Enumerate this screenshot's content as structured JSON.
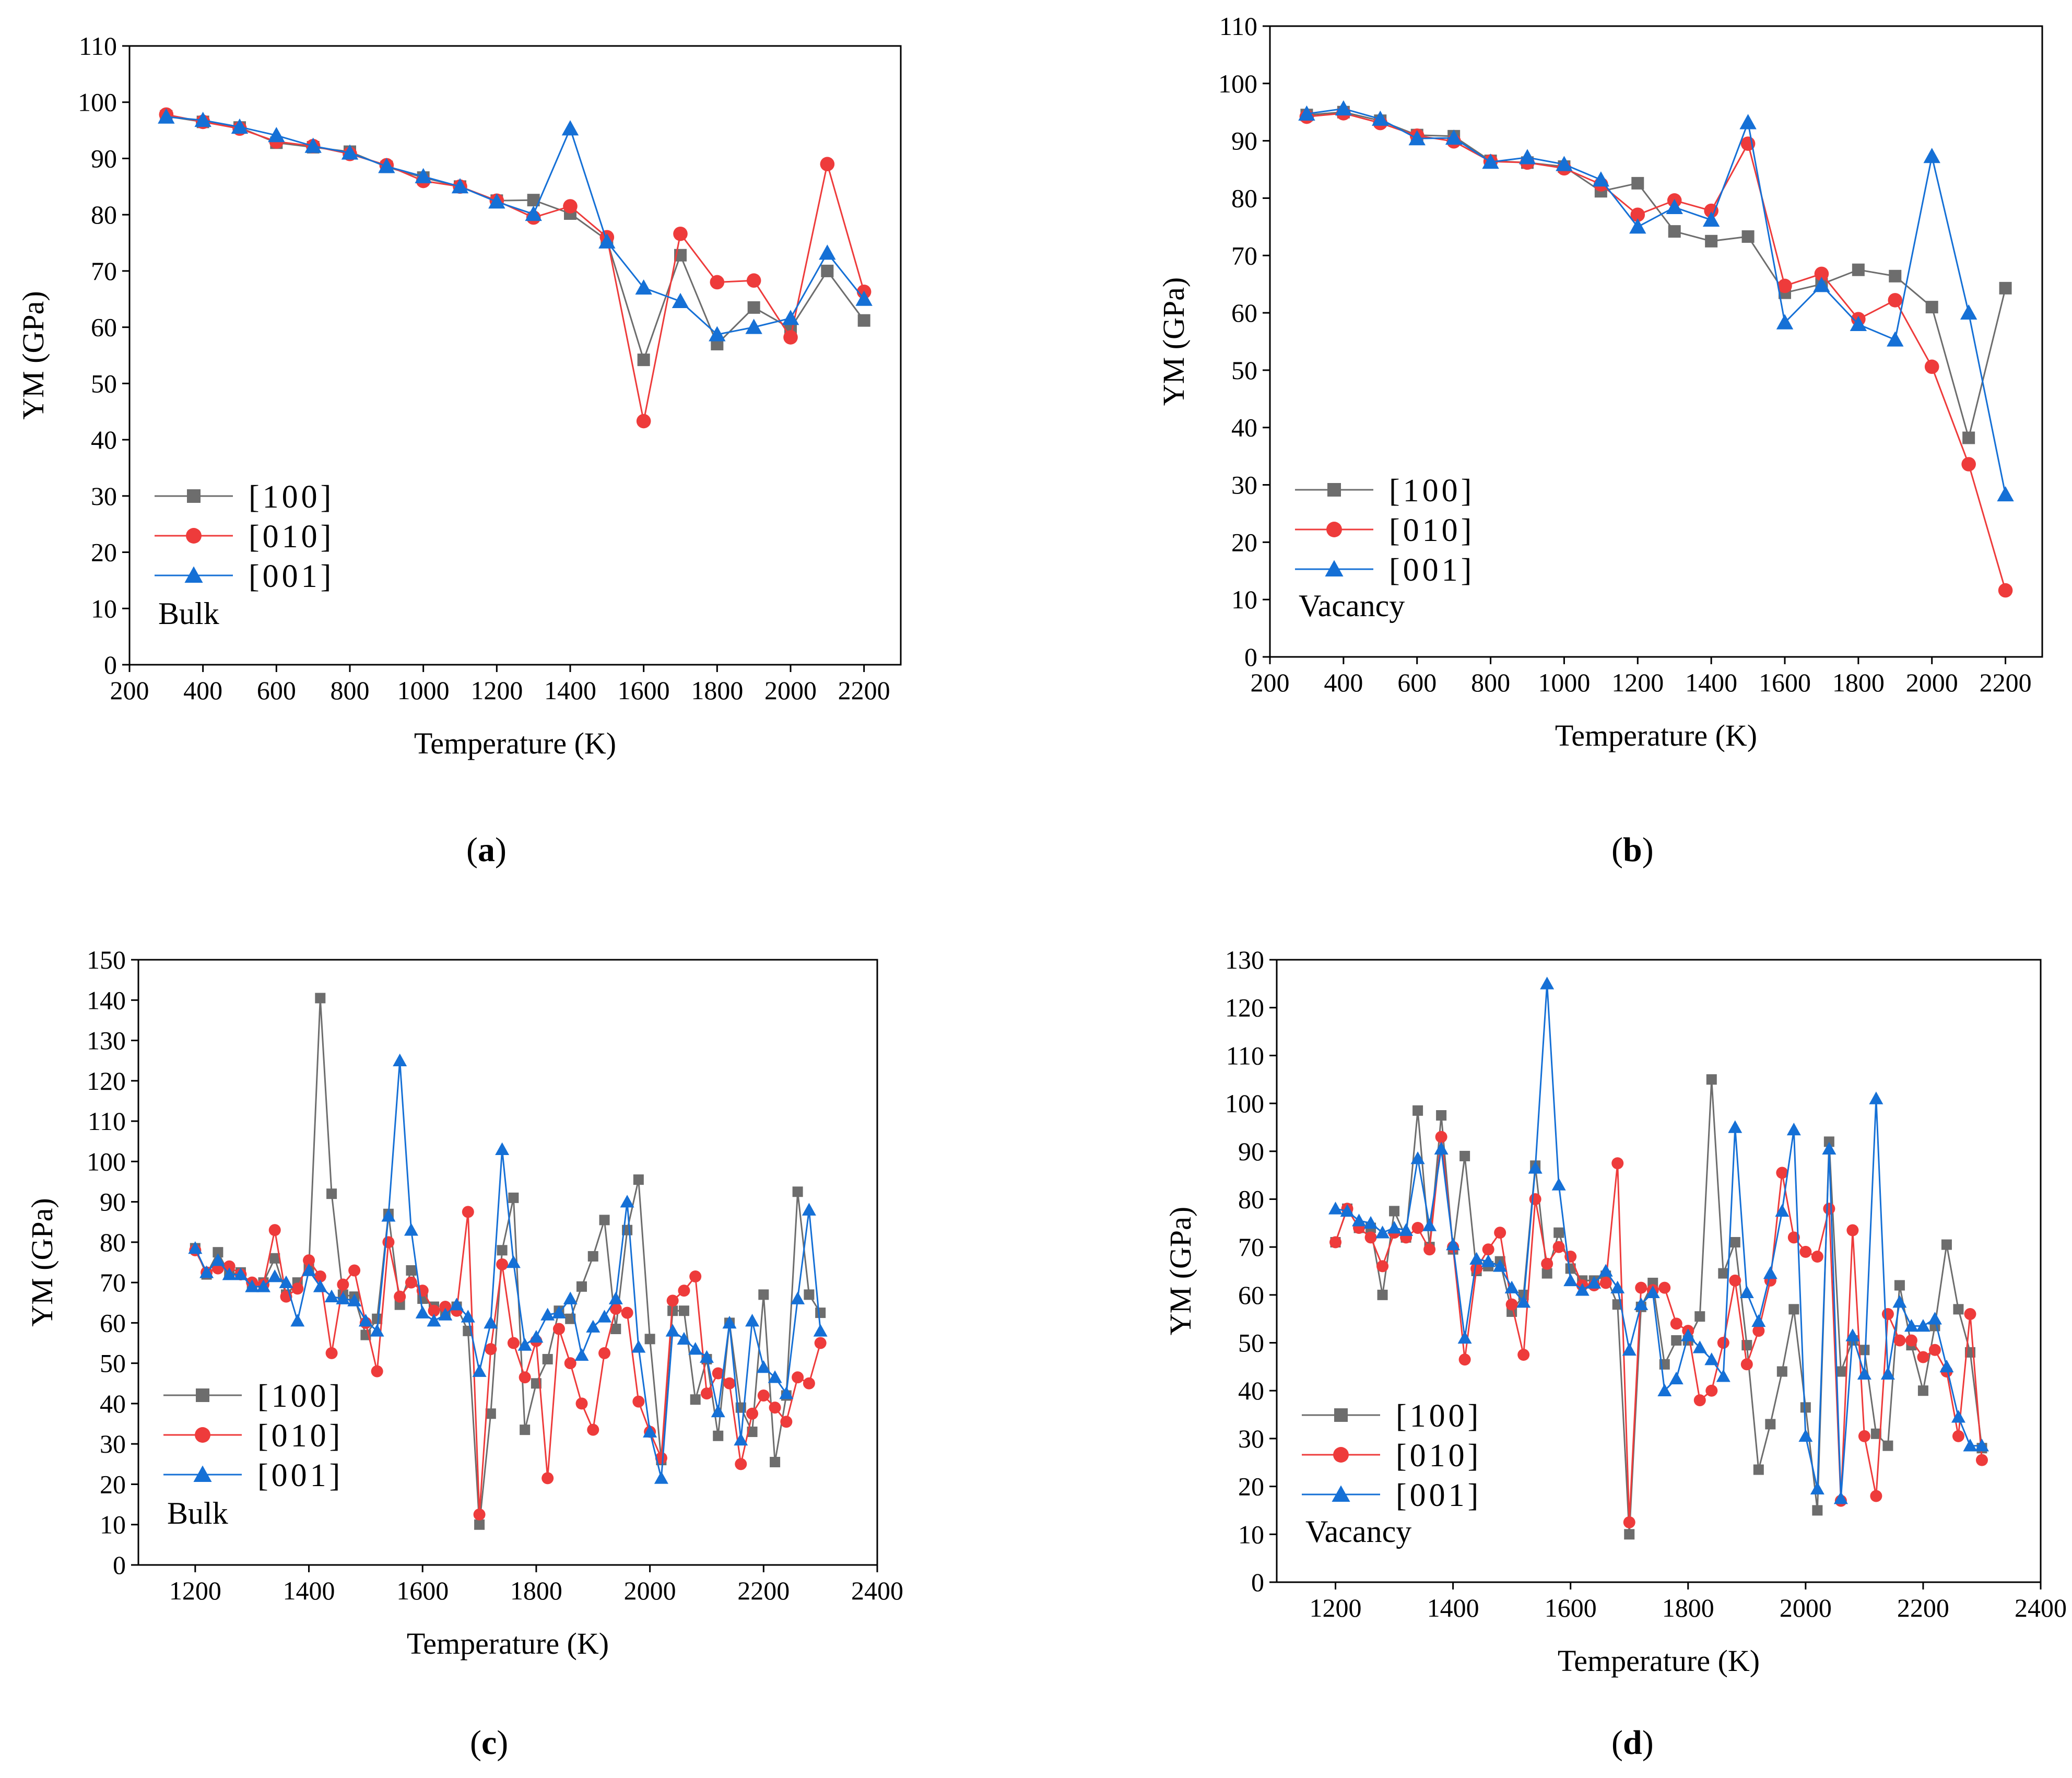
{
  "figure": {
    "panels": [
      "a",
      "b",
      "c",
      "d"
    ]
  },
  "legend_labels": [
    "[100]",
    "[010]",
    "[001]"
  ],
  "chart_data": [
    {
      "id": "a",
      "type": "line",
      "caption": "a",
      "annotation": "Bulk",
      "xlabel": "Temperature (K)",
      "ylabel": "YM (GPa)",
      "xlim": [
        200,
        2300
      ],
      "ylim": [
        0,
        110
      ],
      "xticks": [
        200,
        400,
        600,
        800,
        1000,
        1200,
        1400,
        1600,
        1800,
        2000,
        2200
      ],
      "yticks": [
        0,
        10,
        20,
        30,
        40,
        50,
        60,
        70,
        80,
        90,
        100,
        110
      ],
      "legend_position": "lower-left",
      "grid": false,
      "x": [
        300,
        400,
        500,
        600,
        700,
        800,
        900,
        1000,
        1100,
        1200,
        1300,
        1400,
        1500,
        1600,
        1700,
        1800,
        1900,
        2000,
        2100,
        2200
      ],
      "series": [
        {
          "name": "[100]",
          "color": "#6d6d6d",
          "marker": "square",
          "values": [
            97.5,
            96.5,
            95.5,
            92.8,
            92,
            91.2,
            88.5,
            86.6,
            85,
            82.5,
            82.6,
            80.2,
            75.5,
            54.2,
            72.8,
            57,
            63.5,
            59.8,
            70,
            61.2
          ]
        },
        {
          "name": "[010]",
          "color": "#ee3b3b",
          "marker": "circle",
          "values": [
            97.8,
            96.5,
            95.3,
            93,
            92.2,
            90.8,
            88.8,
            86,
            85,
            82.5,
            79.5,
            81.5,
            76,
            43.3,
            76.6,
            68,
            68.3,
            58.2,
            89,
            66.3
          ]
        },
        {
          "name": "[001]",
          "color": "#1570d6",
          "marker": "triangle",
          "values": [
            97.4,
            96.8,
            95.6,
            94.1,
            92.2,
            91,
            88.6,
            86.8,
            85,
            82.3,
            80.1,
            95.3,
            75.2,
            67,
            64.6,
            58.7,
            60,
            61.6,
            73.2,
            65
          ]
        }
      ]
    },
    {
      "id": "b",
      "type": "line",
      "caption": "b",
      "annotation": "Vacancy",
      "xlabel": "Temperature (K)",
      "ylabel": "YM (GPa)",
      "xlim": [
        200,
        2300
      ],
      "ylim": [
        0,
        110
      ],
      "xticks": [
        200,
        400,
        600,
        800,
        1000,
        1200,
        1400,
        1600,
        1800,
        2000,
        2200
      ],
      "yticks": [
        0,
        10,
        20,
        30,
        40,
        50,
        60,
        70,
        80,
        90,
        100,
        110
      ],
      "legend_position": "lower-left",
      "grid": false,
      "x": [
        300,
        400,
        500,
        600,
        700,
        800,
        900,
        1000,
        1100,
        1200,
        1300,
        1400,
        1500,
        1600,
        1700,
        1800,
        1900,
        2000,
        2100,
        2200
      ],
      "series": [
        {
          "name": "[100]",
          "color": "#6d6d6d",
          "marker": "square",
          "values": [
            94.5,
            95,
            93.5,
            91,
            90.8,
            86.5,
            86.2,
            85.5,
            81.2,
            82.6,
            74.2,
            72.5,
            73.3,
            63.5,
            65,
            67.5,
            66.4,
            61,
            38.2,
            64.3
          ]
        },
        {
          "name": "[010]",
          "color": "#ee3b3b",
          "marker": "circle",
          "values": [
            94.2,
            94.8,
            93.1,
            90.9,
            89.9,
            86.4,
            86.2,
            85.2,
            82.4,
            77.1,
            79.6,
            77.8,
            89.5,
            64.7,
            66.8,
            58.9,
            62.2,
            50.6,
            33.6,
            11.6
          ]
        },
        {
          "name": "[001]",
          "color": "#1570d6",
          "marker": "triangle",
          "values": [
            94.7,
            95.6,
            93.8,
            90.4,
            90.5,
            86.3,
            87.1,
            85.9,
            83.2,
            75,
            78.4,
            76.2,
            93.2,
            58.3,
            64.8,
            58,
            55.3,
            87.3,
            60,
            28.3
          ]
        }
      ]
    },
    {
      "id": "c",
      "type": "line",
      "caption": "c",
      "annotation": "Bulk",
      "xlabel": "Temperature (K)",
      "ylabel": "YM (GPa)",
      "xlim": [
        1100,
        2400
      ],
      "ylim": [
        0,
        150
      ],
      "xticks": [
        1200,
        1400,
        1600,
        1800,
        2000,
        2200,
        2400
      ],
      "yticks": [
        0,
        10,
        20,
        30,
        40,
        50,
        60,
        70,
        80,
        90,
        100,
        110,
        120,
        130,
        140,
        150
      ],
      "legend_position": "lower-left",
      "grid": false,
      "x": [
        1200,
        1220,
        1240,
        1260,
        1280,
        1300,
        1320,
        1340,
        1360,
        1380,
        1400,
        1420,
        1440,
        1460,
        1480,
        1500,
        1520,
        1540,
        1560,
        1580,
        1600,
        1620,
        1640,
        1660,
        1680,
        1700,
        1720,
        1740,
        1760,
        1780,
        1800,
        1820,
        1840,
        1860,
        1880,
        1900,
        1920,
        1940,
        1960,
        1980,
        2000,
        2020,
        2040,
        2060,
        2080,
        2100,
        2120,
        2140,
        2160,
        2180,
        2200,
        2220,
        2240,
        2260,
        2280,
        2300
      ],
      "series": [
        {
          "name": "[100]",
          "color": "#6d6d6d",
          "marker": "square",
          "values": [
            78.5,
            72,
            77.5,
            72,
            72.5,
            69,
            70,
            76,
            67,
            70,
            73.5,
            140.5,
            92,
            67,
            66.5,
            57,
            61,
            87,
            64.5,
            73,
            66,
            64,
            62.5,
            64,
            58,
            10,
            37.5,
            78,
            91,
            33.5,
            45,
            51,
            63,
            61,
            69,
            76.5,
            85.5,
            58.5,
            83,
            95.5,
            56,
            26,
            63,
            63,
            41,
            51,
            32,
            60,
            39,
            33,
            67,
            25.5,
            42,
            92.5,
            67,
            62.5
          ]
        },
        {
          "name": "[010]",
          "color": "#ee3b3b",
          "marker": "circle",
          "values": [
            78,
            72.5,
            73.5,
            74,
            72,
            70,
            69.5,
            83,
            66.5,
            68.5,
            75.5,
            71.5,
            52.5,
            69.5,
            73,
            60,
            48,
            80,
            66.5,
            70,
            68,
            63,
            64,
            63,
            87.5,
            12.5,
            53.5,
            74.5,
            55,
            46.5,
            55.5,
            21.5,
            58.5,
            50,
            40,
            33.5,
            52.5,
            63.5,
            62.5,
            40.5,
            33,
            26.5,
            65.5,
            68,
            71.5,
            42.5,
            47.5,
            45,
            25,
            37.5,
            42,
            39,
            35.5,
            46.5,
            45,
            55
          ]
        },
        {
          "name": "[001]",
          "color": "#1570d6",
          "marker": "triangle",
          "values": [
            78.5,
            72.5,
            75.5,
            72,
            72,
            69,
            69,
            71.5,
            70,
            60.5,
            73,
            69,
            66.5,
            66,
            65.5,
            60.5,
            58,
            86.5,
            125,
            83,
            62.5,
            60.5,
            62,
            64.5,
            61.5,
            48,
            60,
            103,
            75,
            54.5,
            56.5,
            62,
            62.5,
            66,
            52,
            59,
            61.5,
            66,
            90,
            54,
            33,
            21.5,
            58,
            56,
            53.5,
            51.5,
            38,
            60,
            31,
            60.5,
            49,
            46.5,
            42.5,
            66,
            88,
            58
          ]
        }
      ]
    },
    {
      "id": "d",
      "type": "line",
      "caption": "d",
      "annotation": "Vacancy",
      "xlabel": "Temperature (K)",
      "ylabel": "YM (GPa)",
      "xlim": [
        1100,
        2400
      ],
      "ylim": [
        0,
        130
      ],
      "xticks": [
        1200,
        1400,
        1600,
        1800,
        2000,
        2200,
        2400
      ],
      "yticks": [
        0,
        10,
        20,
        30,
        40,
        50,
        60,
        70,
        80,
        90,
        100,
        110,
        120,
        130
      ],
      "legend_position": "lower-left",
      "grid": false,
      "x": [
        1200,
        1220,
        1240,
        1260,
        1280,
        1300,
        1320,
        1340,
        1360,
        1380,
        1400,
        1420,
        1440,
        1460,
        1480,
        1500,
        1520,
        1540,
        1560,
        1580,
        1600,
        1620,
        1640,
        1660,
        1680,
        1700,
        1720,
        1740,
        1760,
        1780,
        1800,
        1820,
        1840,
        1860,
        1880,
        1900,
        1920,
        1940,
        1960,
        1980,
        2000,
        2020,
        2040,
        2060,
        2080,
        2100,
        2120,
        2140,
        2160,
        2180,
        2200,
        2220,
        2240,
        2260,
        2280,
        2300
      ],
      "series": [
        {
          "name": "[100]",
          "color": "#6d6d6d",
          "marker": "square",
          "values": [
            71,
            78,
            74,
            74,
            60,
            77.5,
            72,
            98.5,
            70,
            97.5,
            69.5,
            89,
            65,
            66,
            67,
            56.5,
            60,
            87,
            64.5,
            73,
            65.5,
            63,
            63,
            64,
            58,
            10,
            57.5,
            62.5,
            45.5,
            50.5,
            50.5,
            55.5,
            105,
            64.5,
            71,
            49.5,
            23.5,
            33,
            44,
            57,
            36.5,
            15,
            92,
            44,
            50.5,
            48.5,
            31,
            28.5,
            62,
            49.5,
            40,
            53.5,
            70.5,
            57,
            48,
            28
          ]
        },
        {
          "name": "[010]",
          "color": "#ee3b3b",
          "marker": "circle",
          "values": [
            71,
            78,
            74,
            72,
            66,
            73,
            72,
            74,
            69.5,
            93,
            70,
            46.5,
            65.5,
            69.5,
            73,
            58,
            47.5,
            80,
            66.5,
            70,
            68,
            62,
            62,
            62.5,
            87.5,
            12.5,
            61.5,
            61,
            61.5,
            54,
            52.5,
            38,
            40,
            50,
            63,
            45.5,
            52.5,
            63,
            85.5,
            72,
            69,
            68,
            78,
            17,
            73.5,
            30.5,
            18,
            56,
            50.5,
            50.5,
            47,
            48.5,
            44,
            30.5,
            56,
            25.5
          ]
        },
        {
          "name": "[001]",
          "color": "#1570d6",
          "marker": "triangle",
          "values": [
            78,
            77.5,
            75.5,
            75,
            73,
            74,
            73.5,
            88.5,
            74.5,
            90.5,
            70.5,
            51,
            67.5,
            67,
            66,
            61.5,
            58.5,
            86.5,
            125,
            83,
            63,
            61,
            62.5,
            65,
            61.5,
            48.5,
            58,
            60.5,
            40,
            42.5,
            51.5,
            49,
            46.5,
            43,
            95,
            60.5,
            54.5,
            64.5,
            77.5,
            94.5,
            30.5,
            19.5,
            90.5,
            17.5,
            51.5,
            43.5,
            101,
            43.5,
            58.5,
            53.5,
            53.5,
            55,
            45,
            34.5,
            28.5,
            28.5
          ]
        }
      ]
    }
  ]
}
